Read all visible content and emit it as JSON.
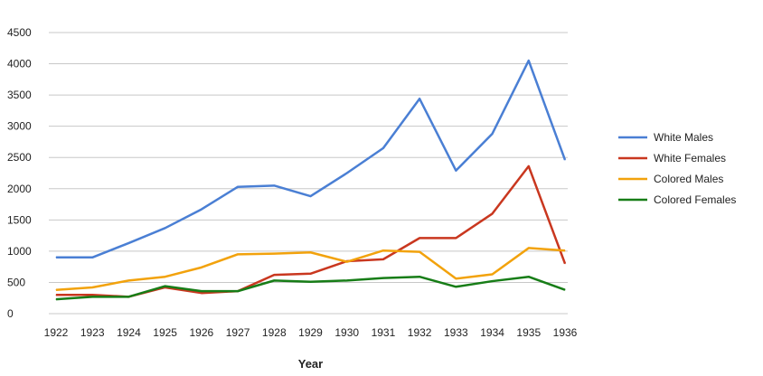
{
  "chart_data": {
    "type": "line",
    "title": "",
    "xlabel": "Year",
    "ylabel": "",
    "ylim": [
      0,
      4500
    ],
    "yticks": [
      0,
      500,
      1000,
      1500,
      2000,
      2500,
      3000,
      3500,
      4000,
      4500
    ],
    "grid": true,
    "legend_position": "right",
    "x": [
      "1922",
      "1923",
      "1924",
      "1925",
      "1926",
      "1927",
      "1928",
      "1929",
      "1930",
      "1931",
      "1932",
      "1933",
      "1934",
      "1935",
      "1936"
    ],
    "series": [
      {
        "name": "White Males",
        "color": "#4a7fd4",
        "values": [
          900,
          900,
          1130,
          1370,
          1670,
          2030,
          2050,
          1880,
          2250,
          2650,
          3440,
          2290,
          2880,
          4050,
          2460
        ]
      },
      {
        "name": "White Females",
        "color": "#c9371f",
        "values": [
          300,
          300,
          270,
          420,
          330,
          360,
          620,
          640,
          840,
          870,
          1210,
          1210,
          1600,
          2360,
          800
        ]
      },
      {
        "name": "Colored Males",
        "color": "#f2a20c",
        "values": [
          380,
          420,
          530,
          590,
          740,
          950,
          960,
          980,
          830,
          1010,
          990,
          560,
          630,
          1050,
          1010
        ]
      },
      {
        "name": "Colored Females",
        "color": "#177d17",
        "values": [
          230,
          270,
          270,
          440,
          360,
          360,
          530,
          510,
          530,
          570,
          590,
          430,
          520,
          590,
          380
        ]
      }
    ]
  }
}
